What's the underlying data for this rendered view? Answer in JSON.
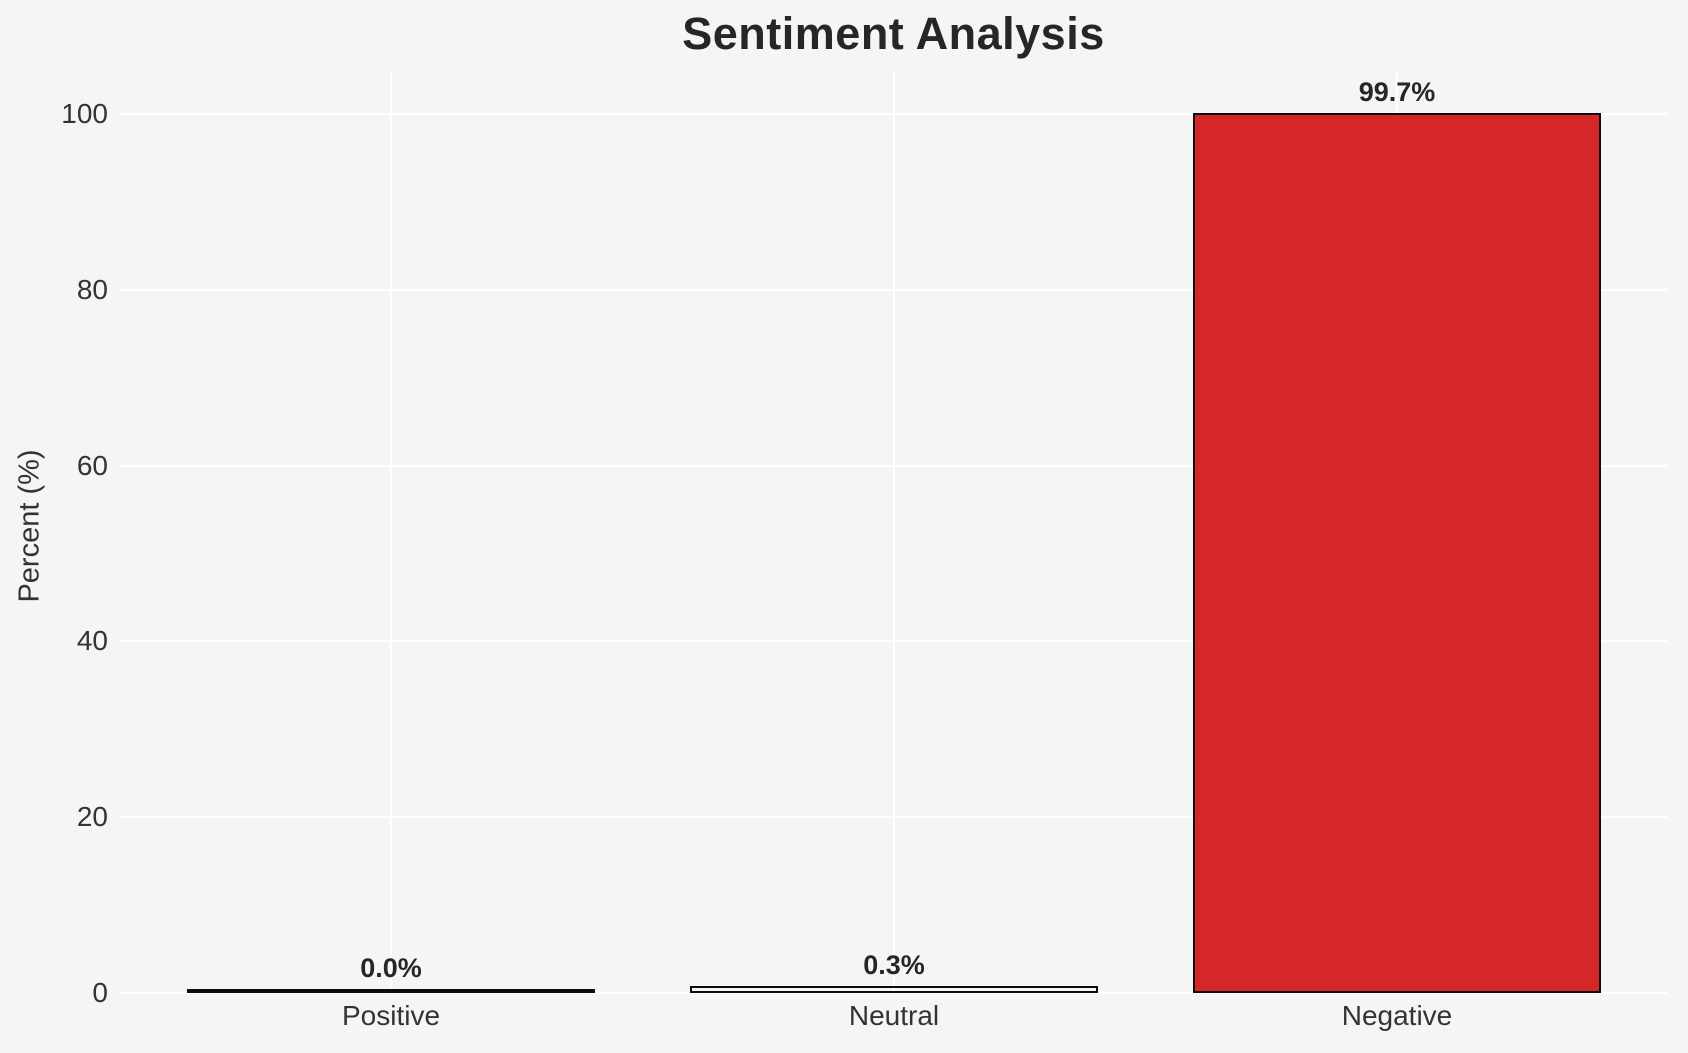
{
  "title": "Sentiment Analysis",
  "chart_data": {
    "type": "bar",
    "title": "Sentiment Analysis",
    "xlabel": "",
    "ylabel": "Percent (%)",
    "categories": [
      "Positive",
      "Neutral",
      "Negative"
    ],
    "values": [
      0.0,
      0.3,
      99.7
    ],
    "bars": [
      {
        "label": "Positive",
        "value": 0.0,
        "display": "0.0%"
      },
      {
        "label": "Neutral",
        "value": 0.3,
        "display": "0.3%"
      },
      {
        "label": "Negative",
        "value": 99.7,
        "display": "99.7%",
        "color": "#d62728"
      }
    ],
    "yticks": [
      0,
      20,
      40,
      60,
      80,
      100
    ],
    "ylim": [
      0,
      105
    ],
    "grid": true,
    "legend": "none",
    "colors": {
      "background": "#f5f5f6",
      "gridline": "#ffffff",
      "bar_fill_negative": "#d62728",
      "bar_edge": "#0d0d0d",
      "text": "#262626"
    }
  }
}
